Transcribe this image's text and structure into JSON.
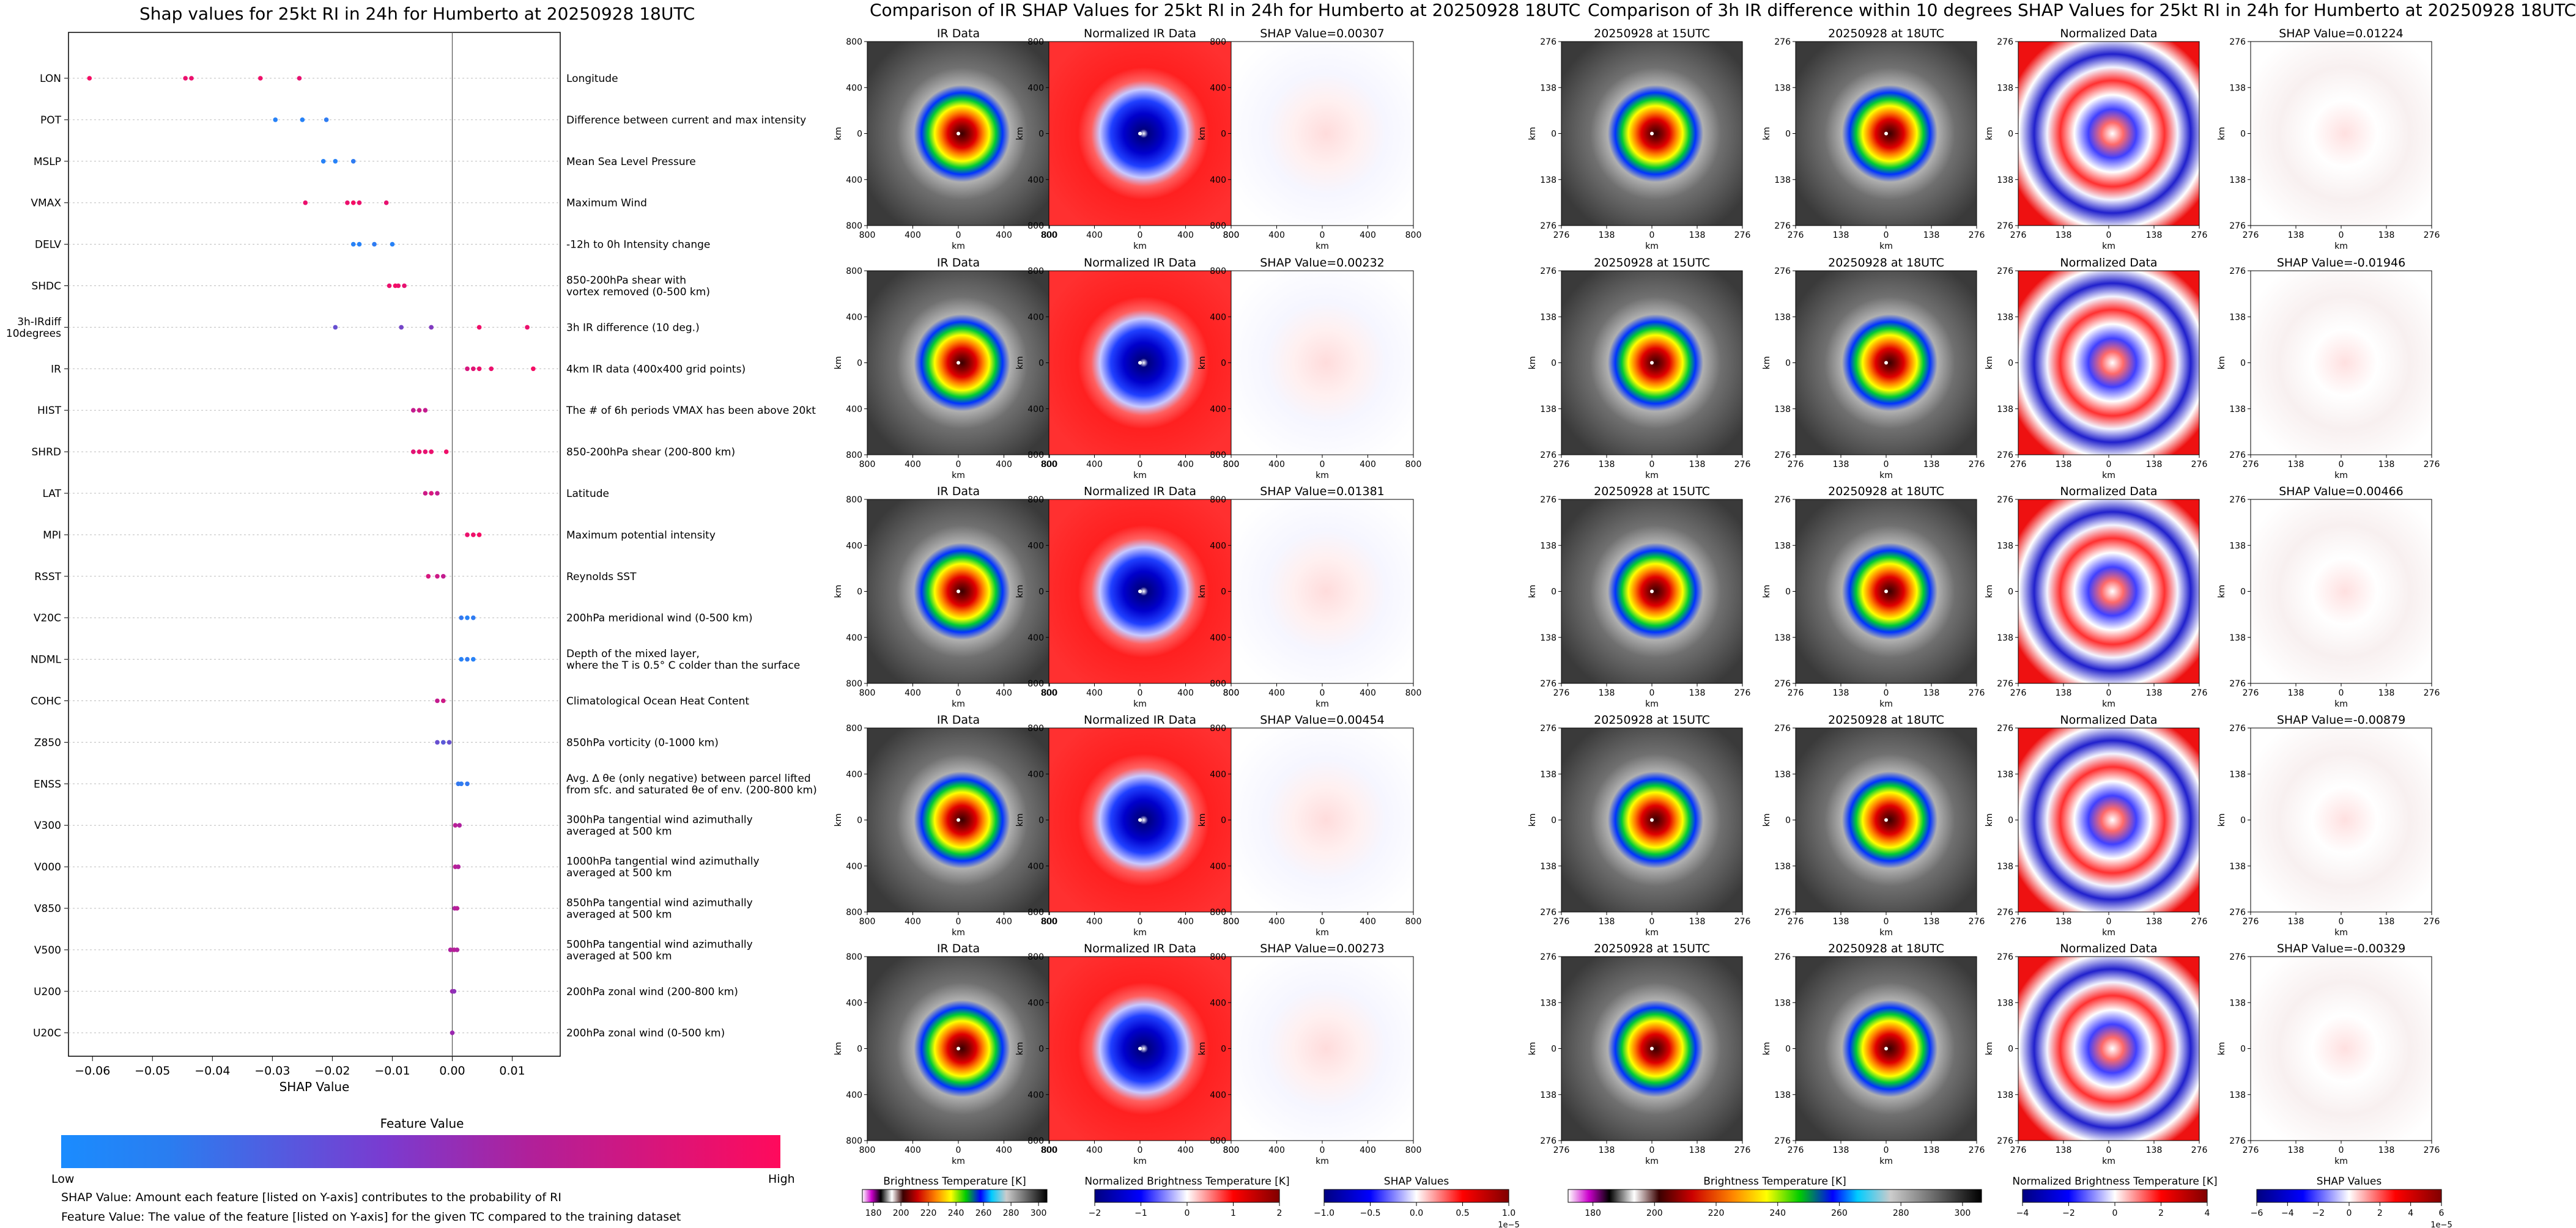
{
  "left_panel": {
    "title": "Shap values for 25kt RI in 24h for Humberto at 20250928 18UTC",
    "xlabel": "SHAP Value",
    "xticks": [
      "−0.06",
      "−0.05",
      "−0.04",
      "−0.03",
      "−0.02",
      "−0.01",
      "0.00",
      "0.01"
    ],
    "colorbar_title": "Feature Value",
    "colorbar_low": "Low",
    "colorbar_high": "High",
    "note1": "SHAP Value: Amount each feature [listed on Y-axis] contributes to the probability of RI",
    "note2": "Feature Value: The value of the feature [listed on Y-axis] for the given TC compared to the training dataset"
  },
  "chart_data": [
    {
      "type": "scatter",
      "title": "Shap values for 25kt RI in 24h for Humberto at 20250928 18UTC",
      "xlabel": "SHAP Value",
      "xlim": [
        -0.064,
        0.018
      ],
      "colors": {
        "low": "#1a8cff",
        "mid": "#9b27b0",
        "high": "#ff0a5c"
      },
      "features": [
        {
          "name": "LON",
          "desc": "Longitude",
          "points": [
            [
              -0.0605,
              0.95
            ],
            [
              -0.0445,
              0.9
            ],
            [
              -0.0435,
              0.9
            ],
            [
              -0.032,
              0.92
            ],
            [
              -0.0255,
              0.88
            ]
          ]
        },
        {
          "name": "POT",
          "desc": "Difference between current and max intensity",
          "points": [
            [
              -0.0295,
              0.05
            ],
            [
              -0.025,
              0.05
            ],
            [
              -0.021,
              0.08
            ]
          ]
        },
        {
          "name": "MSLP",
          "desc": "Mean Sea Level Pressure",
          "points": [
            [
              -0.0215,
              0.05
            ],
            [
              -0.0195,
              0.05
            ],
            [
              -0.0165,
              0.08
            ]
          ]
        },
        {
          "name": "VMAX",
          "desc": "Maximum Wind",
          "points": [
            [
              -0.0245,
              0.9
            ],
            [
              -0.0175,
              0.9
            ],
            [
              -0.0165,
              0.95
            ],
            [
              -0.0155,
              0.9
            ],
            [
              -0.011,
              0.88
            ]
          ]
        },
        {
          "name": "DELV",
          "desc": "-12h to 0h Intensity change",
          "points": [
            [
              -0.0165,
              0.05
            ],
            [
              -0.0155,
              0.05
            ],
            [
              -0.013,
              0.08
            ],
            [
              -0.01,
              0.05
            ]
          ]
        },
        {
          "name": "SHDC",
          "desc": "850-200hPa shear with\nvortex removed (0-500 km)",
          "points": [
            [
              -0.0105,
              0.9
            ],
            [
              -0.0095,
              0.95
            ],
            [
              -0.009,
              0.9
            ],
            [
              -0.008,
              0.88
            ]
          ]
        },
        {
          "name": "3h-IRdiff\n10degrees",
          "desc": "3h IR difference (10 deg.)",
          "points": [
            [
              -0.0195,
              0.3
            ],
            [
              -0.0085,
              0.35
            ],
            [
              -0.0035,
              0.4
            ],
            [
              0.0045,
              0.92
            ],
            [
              0.0125,
              0.9
            ]
          ]
        },
        {
          "name": "IR",
          "desc": "4km IR data (400x400 grid points)",
          "points": [
            [
              0.0025,
              0.8
            ],
            [
              0.0035,
              0.85
            ],
            [
              0.0045,
              0.9
            ],
            [
              0.0065,
              0.9
            ],
            [
              0.0135,
              0.95
            ]
          ]
        },
        {
          "name": "HIST",
          "desc": "The # of 6h periods VMAX has been above 20kt",
          "points": [
            [
              -0.0065,
              0.7
            ],
            [
              -0.0055,
              0.75
            ],
            [
              -0.0045,
              0.7
            ]
          ]
        },
        {
          "name": "SHRD",
          "desc": "850-200hPa shear (200-800 km)",
          "points": [
            [
              -0.0065,
              0.85
            ],
            [
              -0.0055,
              0.9
            ],
            [
              -0.0045,
              0.88
            ],
            [
              -0.0035,
              0.9
            ],
            [
              -0.001,
              0.92
            ]
          ]
        },
        {
          "name": "LAT",
          "desc": "Latitude",
          "points": [
            [
              -0.0045,
              0.75
            ],
            [
              -0.0035,
              0.8
            ],
            [
              -0.0025,
              0.7
            ]
          ]
        },
        {
          "name": "MPI",
          "desc": "Maximum potential intensity",
          "points": [
            [
              0.0025,
              0.9
            ],
            [
              0.0035,
              0.92
            ],
            [
              0.0045,
              0.95
            ]
          ]
        },
        {
          "name": "RSST",
          "desc": "Reynolds SST",
          "points": [
            [
              -0.004,
              0.8
            ],
            [
              -0.0025,
              0.75
            ],
            [
              -0.0015,
              0.7
            ]
          ]
        },
        {
          "name": "V20C",
          "desc": "200hPa meridional wind (0-500 km)",
          "points": [
            [
              0.0015,
              0.1
            ],
            [
              0.0025,
              0.05
            ],
            [
              0.0035,
              0.08
            ]
          ]
        },
        {
          "name": "NDML",
          "desc": "Depth of the mixed layer,\nwhere the T is 0.5° C colder than the surface",
          "points": [
            [
              0.0015,
              0.05
            ],
            [
              0.0025,
              0.08
            ],
            [
              0.0035,
              0.05
            ]
          ]
        },
        {
          "name": "COHC",
          "desc": "Climatological Ocean Heat Content",
          "points": [
            [
              -0.0025,
              0.7
            ],
            [
              -0.0015,
              0.75
            ]
          ]
        },
        {
          "name": "Z850",
          "desc": "850hPa vorticity (0-1000 km)",
          "points": [
            [
              -0.0025,
              0.3
            ],
            [
              -0.0015,
              0.25
            ],
            [
              -0.0005,
              0.3
            ]
          ]
        },
        {
          "name": "ENSS",
          "desc": "Avg. Δ θe (only negative) between parcel lifted\nfrom sfc. and saturated θe of env. (200-800 km)",
          "points": [
            [
              0.001,
              0.1
            ],
            [
              0.0015,
              0.08
            ],
            [
              0.0025,
              0.1
            ]
          ]
        },
        {
          "name": "V300",
          "desc": "300hPa tangential wind azimuthally\naveraged at 500 km",
          "points": [
            [
              0.0005,
              0.65
            ],
            [
              0.0012,
              0.6
            ]
          ]
        },
        {
          "name": "V000",
          "desc": "1000hPa tangential wind azimuthally\naveraged at 500 km",
          "points": [
            [
              0.0005,
              0.65
            ],
            [
              0.001,
              0.6
            ]
          ]
        },
        {
          "name": "V850",
          "desc": "850hPa tangential wind azimuthally\naveraged at 500 km",
          "points": [
            [
              0.0004,
              0.6
            ],
            [
              0.0008,
              0.65
            ]
          ]
        },
        {
          "name": "V500",
          "desc": "500hPa tangential wind azimuthally\naveraged at 500 km",
          "points": [
            [
              -0.0003,
              0.6
            ],
            [
              0.0003,
              0.65
            ],
            [
              0.0008,
              0.6
            ]
          ]
        },
        {
          "name": "U200",
          "desc": "200hPa zonal wind (200-800 km)",
          "points": [
            [
              0.0,
              0.5
            ],
            [
              0.0003,
              0.45
            ]
          ]
        },
        {
          "name": "U20C",
          "desc": "200hPa zonal wind (0-500 km)",
          "points": [
            [
              0.0,
              0.5
            ]
          ]
        }
      ]
    },
    {
      "type": "heatmap",
      "title": "Comparison of IR SHAP Values for 25kt RI in 24h for Humberto at 20250928 18UTC",
      "columns": [
        "IR Data",
        "Normalized IR Data",
        "SHAP Value"
      ],
      "shap_values": [
        "0.00307",
        "0.00232",
        "0.01381",
        "0.00454",
        "0.00273"
      ],
      "axis_ticks": [
        "800",
        "400",
        "0",
        "400",
        "800"
      ],
      "axis_label": "km"
    },
    {
      "type": "heatmap",
      "title": "Comparison of 3h IR difference within 10 degrees SHAP Values for 25kt RI in 24h for Humberto at 20250928 18UTC",
      "columns": [
        "20250928 at 15UTC",
        "20250928 at 18UTC",
        "Normalized Data",
        "SHAP Value"
      ],
      "shap_values": [
        "0.01224",
        "-0.01946",
        "0.00466",
        "-0.00879",
        "-0.00329"
      ],
      "axis_ticks": [
        "276",
        "138",
        "0",
        "138",
        "276"
      ],
      "axis_label": "km"
    }
  ],
  "middle_section": {
    "title": "Comparison of IR SHAP Values for 25kt RI in 24h for Humberto at 20250928 18UTC",
    "col_titles": [
      "IR Data",
      "Normalized IR Data"
    ],
    "shap_prefix": "SHAP Value=",
    "shap_values": [
      "0.00307",
      "0.00232",
      "0.01381",
      "0.00454",
      "0.00273"
    ],
    "ticks": [
      "800",
      "400",
      "0",
      "400",
      "800"
    ],
    "axis_label": "km",
    "colorbars": [
      {
        "label": "Brightness Temperature [K]",
        "ticks": [
          "180",
          "200",
          "220",
          "240",
          "260",
          "280",
          "300"
        ],
        "exponent": ""
      },
      {
        "label": "Normalized Brightness Temperature [K]",
        "ticks": [
          "−2",
          "−1",
          "0",
          "1",
          "2"
        ],
        "exponent": ""
      },
      {
        "label": "SHAP Values",
        "ticks": [
          "−1.0",
          "−0.5",
          "0.0",
          "0.5",
          "1.0"
        ],
        "exponent": "1e−5"
      }
    ]
  },
  "right_section": {
    "title": "Comparison of 3h IR difference within 10 degrees SHAP Values for 25kt RI in 24h for Humberto at 20250928 18UTC",
    "col_titles": [
      "20250928 at 15UTC",
      "20250928 at 18UTC",
      "Normalized Data"
    ],
    "shap_prefix": "SHAP Value=",
    "shap_values": [
      "0.01224",
      "-0.01946",
      "0.00466",
      "-0.00879",
      "-0.00329"
    ],
    "ticks": [
      "276",
      "138",
      "0",
      "138",
      "276"
    ],
    "axis_label": "km",
    "colorbars": [
      {
        "label": "Brightness Temperature [K]",
        "ticks": [
          "180",
          "200",
          "220",
          "240",
          "260",
          "280",
          "300"
        ],
        "exponent": ""
      },
      {
        "label": "Normalized Brightness Temperature [K]",
        "ticks": [
          "−4",
          "−2",
          "0",
          "2",
          "4"
        ],
        "exponent": ""
      },
      {
        "label": "SHAP Values",
        "ticks": [
          "−6",
          "−4",
          "−2",
          "0",
          "2",
          "4",
          "6"
        ],
        "exponent": "1e−5"
      }
    ]
  }
}
